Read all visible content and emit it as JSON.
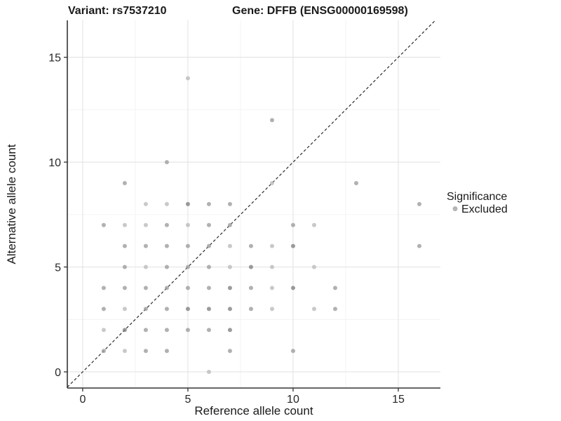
{
  "header": {
    "variant_title": "Variant: rs7537210",
    "gene_title": "Gene: DFFB (ENSG00000169598)"
  },
  "chart_data": {
    "type": "scatter",
    "title": "Variant: rs7537210    Gene: DFFB (ENSG00000169598)",
    "xlabel": "Reference allele count",
    "ylabel": "Alternative allele count",
    "xlim": [
      -0.73,
      17.0
    ],
    "ylim": [
      -0.77,
      16.76
    ],
    "x_ticks": [
      0,
      5,
      10,
      15
    ],
    "x_tick_labels": [
      "0",
      "5",
      "10",
      "15"
    ],
    "y_ticks": [
      0,
      5,
      10,
      15
    ],
    "y_tick_labels": [
      "0",
      "5",
      "10",
      "15"
    ],
    "x_minor_gridlines": [
      2.5,
      7.5,
      12.5
    ],
    "y_minor_gridlines": [
      2.5,
      7.5,
      12.5
    ],
    "grid": "on",
    "legend_position": "right",
    "identity_line": {
      "equation": "y = x",
      "style": "dashed",
      "color": "#1a1a1a"
    },
    "legend": {
      "title": "Significance",
      "items": [
        {
          "label": "Excluded",
          "color": "#b5b5b5"
        }
      ]
    },
    "point_style": {
      "radius": 3,
      "opacity": 0.8,
      "shade_colors": {
        "1": "#bcbcbc",
        "2": "#9d9d9d",
        "3": "#828282"
      }
    },
    "points": [
      [
        5,
        14,
        1
      ],
      [
        9,
        12,
        2
      ],
      [
        4,
        10,
        2
      ],
      [
        2,
        9,
        2
      ],
      [
        9,
        9,
        1
      ],
      [
        13,
        9,
        2
      ],
      [
        3,
        8,
        1
      ],
      [
        4,
        8,
        1
      ],
      [
        5,
        8,
        3
      ],
      [
        6,
        8,
        2
      ],
      [
        7,
        8,
        2
      ],
      [
        16,
        8,
        2
      ],
      [
        1,
        7,
        2
      ],
      [
        2,
        7,
        1
      ],
      [
        3,
        7,
        1
      ],
      [
        4,
        7,
        2
      ],
      [
        5,
        7,
        1
      ],
      [
        6,
        7,
        2
      ],
      [
        7,
        7,
        2
      ],
      [
        10,
        7,
        2
      ],
      [
        11,
        7,
        1
      ],
      [
        2,
        6,
        2
      ],
      [
        3,
        6,
        2
      ],
      [
        4,
        6,
        2
      ],
      [
        5,
        6,
        2
      ],
      [
        6,
        6,
        2
      ],
      [
        7,
        6,
        1
      ],
      [
        8,
        6,
        2
      ],
      [
        9,
        6,
        1
      ],
      [
        10,
        6,
        3
      ],
      [
        16,
        6,
        2
      ],
      [
        2,
        5,
        2
      ],
      [
        3,
        5,
        1
      ],
      [
        4,
        5,
        2
      ],
      [
        5,
        5,
        2
      ],
      [
        6,
        5,
        2
      ],
      [
        7,
        5,
        1
      ],
      [
        8,
        5,
        3
      ],
      [
        9,
        5,
        1
      ],
      [
        11,
        5,
        1
      ],
      [
        1,
        4,
        2
      ],
      [
        2,
        4,
        2
      ],
      [
        3,
        4,
        2
      ],
      [
        4,
        4,
        2
      ],
      [
        5,
        4,
        2
      ],
      [
        6,
        4,
        2
      ],
      [
        7,
        4,
        3
      ],
      [
        8,
        4,
        2
      ],
      [
        9,
        4,
        1
      ],
      [
        10,
        4,
        3
      ],
      [
        12,
        4,
        2
      ],
      [
        1,
        3,
        2
      ],
      [
        2,
        3,
        1
      ],
      [
        3,
        3,
        2
      ],
      [
        4,
        3,
        2
      ],
      [
        5,
        3,
        3
      ],
      [
        6,
        3,
        3
      ],
      [
        7,
        3,
        3
      ],
      [
        8,
        3,
        2
      ],
      [
        9,
        3,
        1
      ],
      [
        11,
        3,
        1
      ],
      [
        12,
        3,
        2
      ],
      [
        1,
        2,
        1
      ],
      [
        2,
        2,
        3
      ],
      [
        3,
        2,
        2
      ],
      [
        4,
        2,
        2
      ],
      [
        5,
        2,
        2
      ],
      [
        6,
        2,
        2
      ],
      [
        7,
        2,
        3
      ],
      [
        1,
        1,
        2
      ],
      [
        2,
        1,
        1
      ],
      [
        3,
        1,
        2
      ],
      [
        4,
        1,
        2
      ],
      [
        7,
        1,
        2
      ],
      [
        10,
        1,
        2
      ],
      [
        6,
        0,
        1
      ]
    ]
  },
  "colors": {
    "background": "#ffffff",
    "grid_major": "#e4e4e4",
    "grid_minor": "#f2f2f2",
    "axis_line": "#333333",
    "text": "#1a1a1a",
    "point_gray": "#b5b5b5"
  }
}
